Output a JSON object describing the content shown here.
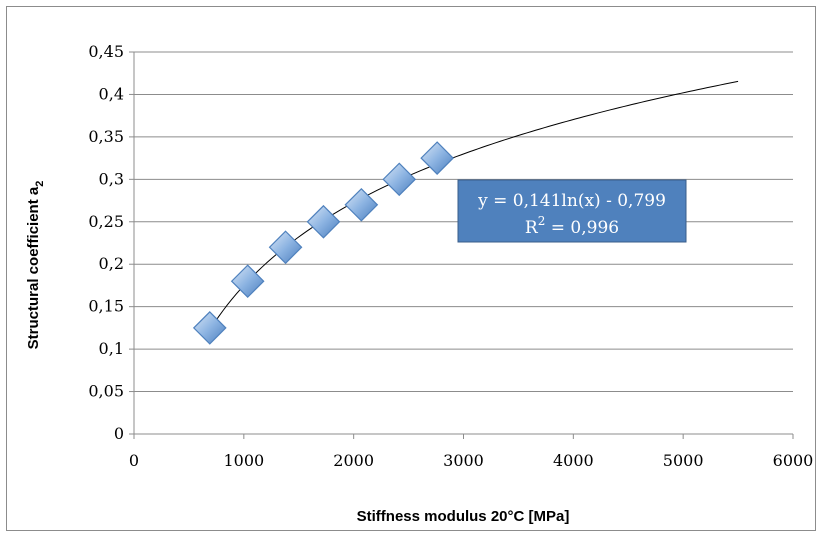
{
  "chart_data": {
    "type": "scatter",
    "xlabel": "Stiffness modulus 20°C [MPa]",
    "ylabel_main": "Structural coefficient a",
    "ylabel_sub": "2",
    "xlim": [
      0,
      6000
    ],
    "ylim": [
      0,
      0.45
    ],
    "x_ticks": [
      "0",
      "1000",
      "2000",
      "3000",
      "4000",
      "5000",
      "6000"
    ],
    "y_ticks": [
      "0",
      "0,05",
      "0,1",
      "0,15",
      "0,2",
      "0,25",
      "0,3",
      "0,35",
      "0,4",
      "0,45"
    ],
    "grid": "horizontal",
    "series": [
      {
        "x": [
          690,
          1035,
          1380,
          1725,
          2070,
          2415,
          2760
        ],
        "y": [
          0.125,
          0.18,
          0.22,
          0.25,
          0.27,
          0.3,
          0.325
        ]
      }
    ],
    "trendline": {
      "type": "logarithmic",
      "a": 0.141,
      "b": -0.799,
      "x_range": [
        690,
        5500
      ]
    },
    "equation_text": "y = 0,141ln(x) - 0,799",
    "r2_prefix": "R",
    "r2_sup": "2",
    "r2_suffix": " = 0,996",
    "colors": {
      "marker_fill": "#8db4e2",
      "marker_stroke": "#4f81bd",
      "label_box": "#4f81bd",
      "grid": "#8c8c8c"
    }
  }
}
